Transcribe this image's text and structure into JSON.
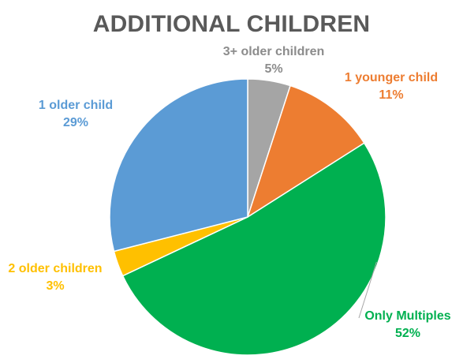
{
  "chart_data": {
    "type": "pie",
    "title": "ADDITIONAL CHILDREN",
    "start_angle_deg": 0,
    "direction": "clockwise",
    "slices": [
      {
        "label": "3+ older children",
        "value": 5,
        "value_label": "5%",
        "color": "#A5A5A5",
        "label_color": "#8C8C8C"
      },
      {
        "label": "1 younger child",
        "value": 11,
        "value_label": "11%",
        "color": "#ED7D31",
        "label_color": "#ED7D31"
      },
      {
        "label": "Only Multiples",
        "value": 52,
        "value_label": "52%",
        "color": "#00B050",
        "label_color": "#00B050"
      },
      {
        "label": "2 older children",
        "value": 3,
        "value_label": "3%",
        "color": "#FFC000",
        "label_color": "#FFC000"
      },
      {
        "label": "1 older child",
        "value": 29,
        "value_label": "29%",
        "color": "#5B9BD5",
        "label_color": "#5B9BD5"
      }
    ],
    "legend": "none",
    "leader_line_on": "Only Multiples"
  }
}
